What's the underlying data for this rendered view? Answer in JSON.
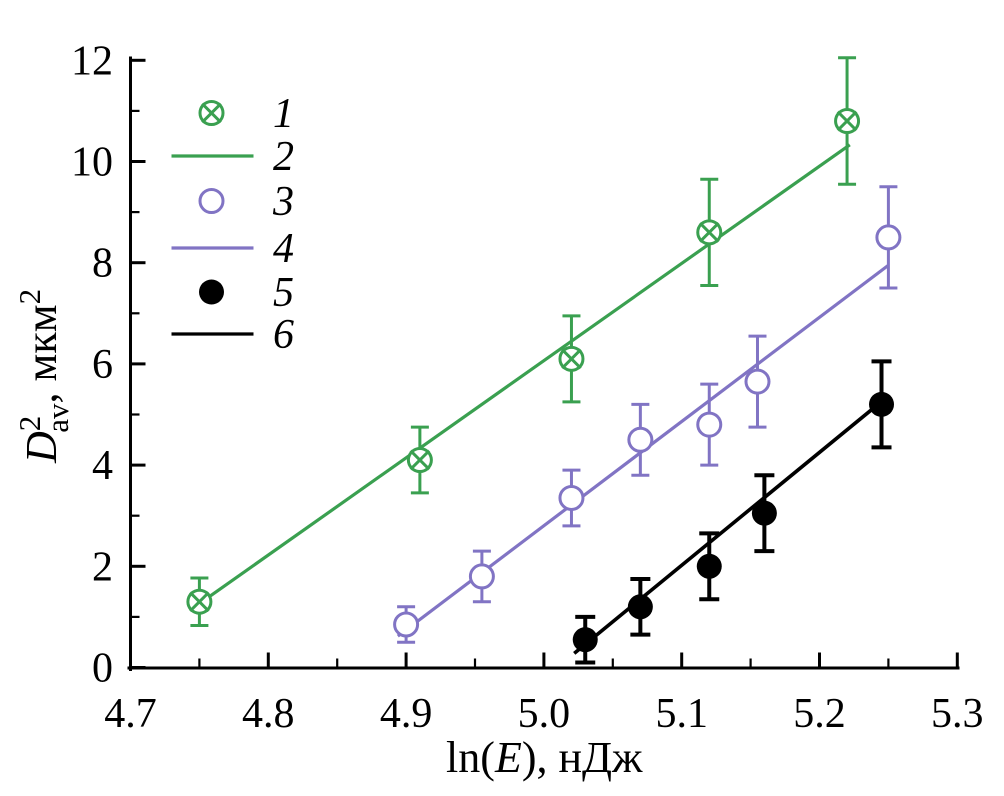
{
  "chart_data": {
    "type": "scatter",
    "title": "",
    "xlabel": "ln(E), нДж",
    "ylabel": "D²av, мкм²",
    "xlabel_parts": {
      "pre": "ln(",
      "arg": "E",
      "post": "), нДж"
    },
    "ylabel_parts": {
      "base": "D",
      "sup": "2",
      "sub": "av",
      "unit": ", мкм",
      "unit_sup": "2"
    },
    "xlim": [
      4.7,
      5.3
    ],
    "ylim": [
      0,
      12
    ],
    "x_ticks": [
      4.7,
      4.8,
      4.9,
      5.0,
      5.1,
      5.2,
      5.3
    ],
    "x_tick_labels": [
      "4.7",
      "4.8",
      "4.9",
      "5.0",
      "5.1",
      "5.2",
      "5.3"
    ],
    "x_minor_ticks": [
      4.75,
      4.85,
      4.95,
      5.05,
      5.15,
      5.25
    ],
    "y_ticks": [
      0,
      2,
      4,
      6,
      8,
      10,
      12
    ],
    "y_tick_labels": [
      "0",
      "2",
      "4",
      "6",
      "8",
      "10",
      "12"
    ],
    "y_minor_ticks": [
      1,
      3,
      5,
      7,
      9,
      11
    ],
    "grid": false,
    "axis_color": "#000000",
    "background": "#ffffff",
    "colors": {
      "green": "#3aa050",
      "purple": "#8174c4",
      "black": "#000000"
    },
    "series": [
      {
        "id": "1",
        "legend_label": "1",
        "type": "scatter",
        "marker": "circle-x",
        "color": "#3aa050",
        "points": [
          {
            "x": 4.75,
            "y": 1.3,
            "yerr": 0.47
          },
          {
            "x": 4.91,
            "y": 4.1,
            "yerr": 0.65
          },
          {
            "x": 5.02,
            "y": 6.1,
            "yerr": 0.85
          },
          {
            "x": 5.12,
            "y": 8.6,
            "yerr": 1.05
          },
          {
            "x": 5.22,
            "y": 10.8,
            "yerr": 1.25
          }
        ]
      },
      {
        "id": "2",
        "legend_label": "2",
        "type": "line",
        "color": "#3aa050",
        "x1": 4.752,
        "y1": 1.3,
        "x2": 5.222,
        "y2": 10.33
      },
      {
        "id": "3",
        "legend_label": "3",
        "type": "scatter",
        "marker": "circle-open",
        "color": "#8174c4",
        "points": [
          {
            "x": 4.9,
            "y": 0.85,
            "yerr": 0.35
          },
          {
            "x": 4.955,
            "y": 1.8,
            "yerr": 0.5
          },
          {
            "x": 5.02,
            "y": 3.35,
            "yerr": 0.55
          },
          {
            "x": 5.07,
            "y": 4.5,
            "yerr": 0.7
          },
          {
            "x": 5.12,
            "y": 4.8,
            "yerr": 0.8
          },
          {
            "x": 5.155,
            "y": 5.65,
            "yerr": 0.9
          },
          {
            "x": 5.25,
            "y": 8.5,
            "yerr": 1.0
          }
        ]
      },
      {
        "id": "4",
        "legend_label": "4",
        "type": "line",
        "color": "#8174c4",
        "x1": 4.894,
        "y1": 0.62,
        "x2": 5.25,
        "y2": 7.95
      },
      {
        "id": "5",
        "legend_label": "5",
        "type": "scatter",
        "marker": "circle-filled",
        "color": "#000000",
        "points": [
          {
            "x": 5.03,
            "y": 0.55,
            "yerr": 0.45
          },
          {
            "x": 5.07,
            "y": 1.2,
            "yerr": 0.55
          },
          {
            "x": 5.12,
            "y": 2.0,
            "yerr": 0.65
          },
          {
            "x": 5.16,
            "y": 3.05,
            "yerr": 0.75
          },
          {
            "x": 5.245,
            "y": 5.2,
            "yerr": 0.85
          }
        ]
      },
      {
        "id": "6",
        "legend_label": "6",
        "type": "line",
        "color": "#000000",
        "x1": 5.022,
        "y1": 0.28,
        "x2": 5.247,
        "y2": 5.3
      }
    ],
    "legend": {
      "position": "upper-left",
      "items": [
        {
          "label": "1",
          "swatch": "circle-x",
          "color": "#3aa050"
        },
        {
          "label": "2",
          "swatch": "line",
          "color": "#3aa050"
        },
        {
          "label": "3",
          "swatch": "circle-open",
          "color": "#8174c4"
        },
        {
          "label": "4",
          "swatch": "line",
          "color": "#8174c4"
        },
        {
          "label": "5",
          "swatch": "circle-filled",
          "color": "#000000"
        },
        {
          "label": "6",
          "swatch": "line",
          "color": "#000000"
        }
      ]
    }
  }
}
